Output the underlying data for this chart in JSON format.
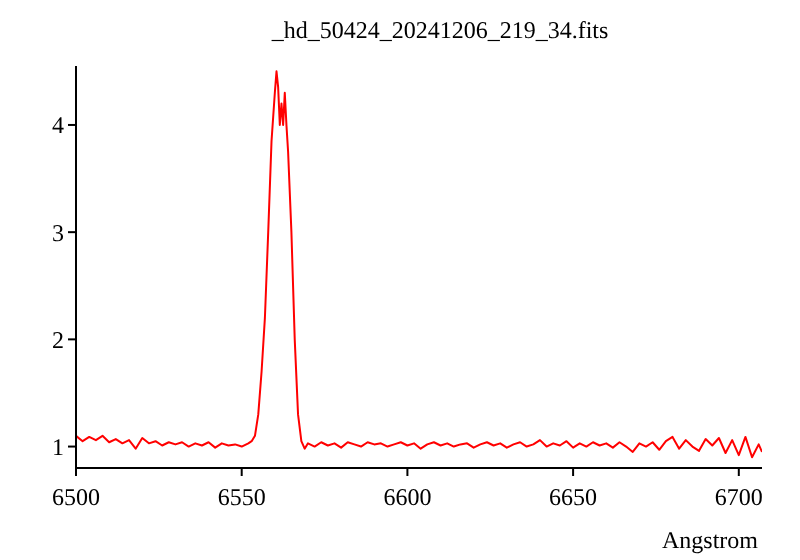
{
  "chart_data": {
    "type": "line",
    "title": "_hd_50424_20241206_219_34.fits",
    "xlabel": "Angstrom",
    "x": [
      6500,
      6502,
      6504,
      6506,
      6508,
      6510,
      6512,
      6514,
      6516,
      6518,
      6520,
      6522,
      6524,
      6526,
      6528,
      6530,
      6532,
      6534,
      6536,
      6538,
      6540,
      6542,
      6544,
      6546,
      6548,
      6550,
      6552,
      6553,
      6554,
      6555,
      6556,
      6557,
      6558,
      6559,
      6560,
      6560.5,
      6561,
      6561.5,
      6562,
      6562.5,
      6563,
      6563.5,
      6564,
      6565,
      6566,
      6567,
      6568,
      6569,
      6570,
      6572,
      6574,
      6576,
      6578,
      6580,
      6582,
      6584,
      6586,
      6588,
      6590,
      6592,
      6594,
      6596,
      6598,
      6600,
      6602,
      6604,
      6606,
      6608,
      6610,
      6612,
      6614,
      6616,
      6618,
      6620,
      6622,
      6624,
      6626,
      6628,
      6630,
      6632,
      6634,
      6636,
      6638,
      6640,
      6642,
      6644,
      6646,
      6648,
      6650,
      6652,
      6654,
      6656,
      6658,
      6660,
      6662,
      6664,
      6666,
      6668,
      6670,
      6672,
      6674,
      6676,
      6678,
      6680,
      6682,
      6684,
      6686,
      6688,
      6690,
      6692,
      6694,
      6696,
      6698,
      6700,
      6702,
      6704,
      6706,
      6707
    ],
    "series": [
      {
        "color": "#ff0000",
        "values": [
          1.1,
          1.05,
          1.09,
          1.06,
          1.1,
          1.04,
          1.07,
          1.03,
          1.06,
          0.98,
          1.08,
          1.03,
          1.05,
          1.01,
          1.04,
          1.02,
          1.04,
          1.0,
          1.03,
          1.01,
          1.04,
          0.99,
          1.03,
          1.01,
          1.02,
          1.0,
          1.03,
          1.05,
          1.1,
          1.3,
          1.7,
          2.2,
          3.0,
          3.85,
          4.3,
          4.5,
          4.35,
          4.0,
          4.2,
          4.0,
          4.3,
          4.0,
          3.75,
          3.0,
          2.0,
          1.3,
          1.05,
          0.98,
          1.03,
          1.0,
          1.04,
          1.01,
          1.03,
          0.99,
          1.04,
          1.02,
          1.0,
          1.04,
          1.02,
          1.03,
          1.0,
          1.02,
          1.04,
          1.01,
          1.03,
          0.98,
          1.02,
          1.04,
          1.01,
          1.03,
          1.0,
          1.02,
          1.03,
          0.99,
          1.02,
          1.04,
          1.01,
          1.03,
          0.99,
          1.02,
          1.04,
          1.0,
          1.02,
          1.06,
          1.0,
          1.03,
          1.01,
          1.05,
          0.99,
          1.03,
          1.0,
          1.04,
          1.01,
          1.03,
          0.99,
          1.04,
          1.0,
          0.95,
          1.03,
          1.0,
          1.04,
          0.97,
          1.05,
          1.09,
          0.98,
          1.06,
          1.0,
          0.96,
          1.07,
          1.01,
          1.08,
          0.94,
          1.06,
          0.92,
          1.09,
          0.9,
          1.02,
          0.95
        ]
      }
    ],
    "xlim": [
      6500,
      6707
    ],
    "xticks": [
      6500,
      6550,
      6600,
      6650,
      6700
    ],
    "ylim": [
      0.8,
      4.55
    ],
    "yticks": [
      1,
      2,
      3,
      4
    ],
    "grid": false,
    "legend": false,
    "marker": "none",
    "line_style": "solid"
  }
}
